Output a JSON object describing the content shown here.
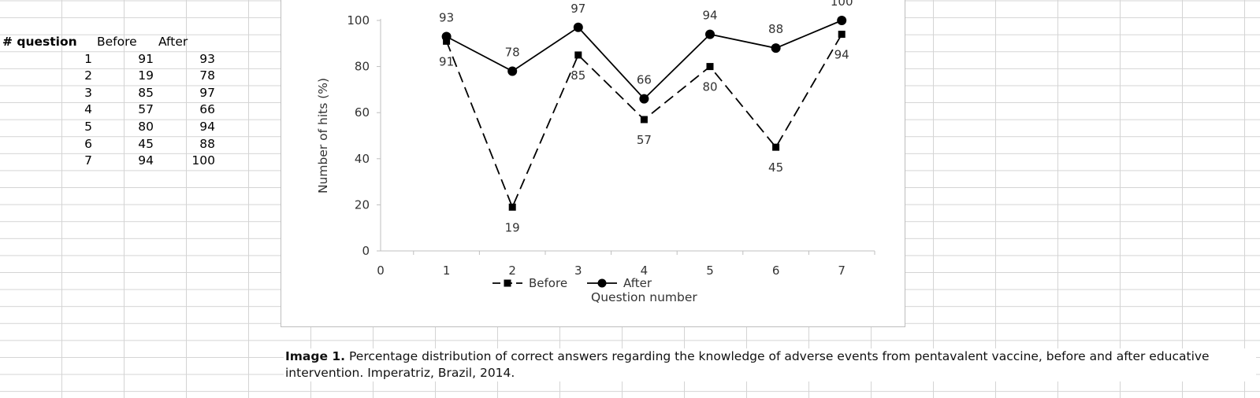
{
  "sheet": {
    "headers": [
      "# question",
      "Before",
      "After"
    ],
    "rows": [
      [
        "1",
        "91",
        "93"
      ],
      [
        "2",
        "19",
        "78"
      ],
      [
        "3",
        "85",
        "97"
      ],
      [
        "4",
        "57",
        "66"
      ],
      [
        "5",
        "80",
        "94"
      ],
      [
        "6",
        "45",
        "88"
      ],
      [
        "7",
        "94",
        "100"
      ]
    ]
  },
  "chart_data": {
    "type": "line",
    "x": [
      1,
      2,
      3,
      4,
      5,
      6,
      7
    ],
    "series": [
      {
        "name": "Before",
        "values": [
          91,
          19,
          85,
          57,
          80,
          45,
          94
        ],
        "marker": "square",
        "line_style": "dashed",
        "color": "#000000"
      },
      {
        "name": "After",
        "values": [
          93,
          78,
          97,
          66,
          94,
          88,
          100
        ],
        "marker": "circle",
        "line_style": "solid",
        "color": "#000000"
      }
    ],
    "xlabel": "Question number",
    "ylabel": "Number of hits (%)",
    "xlim": [
      0,
      7
    ],
    "ylim": [
      0,
      100
    ],
    "xticks": [
      "0",
      "1",
      "2",
      "3",
      "4",
      "5",
      "6",
      "7"
    ],
    "yticks": [
      "0",
      "20",
      "40",
      "60",
      "80",
      "100"
    ],
    "grid": false,
    "legend_position": "bottom"
  },
  "caption": {
    "label": "Image 1.",
    "text": " Percentage distribution of correct answers regarding the knowledge of adverse events from pentavalent vaccine, before and after educative intervention. Imperatriz, Brazil, 2014."
  }
}
